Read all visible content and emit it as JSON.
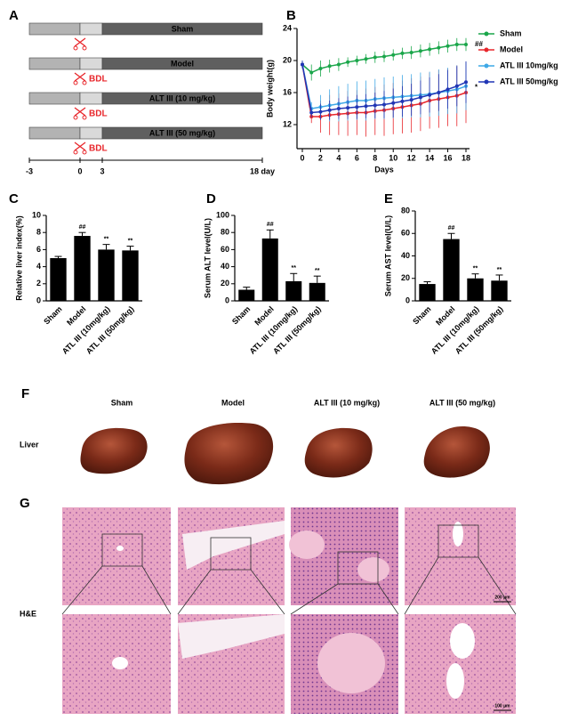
{
  "panels": [
    "A",
    "B",
    "C",
    "D",
    "E",
    "F",
    "G"
  ],
  "timeline": {
    "groups": [
      "Sham",
      "Model",
      "ALT III (10 mg/kg)",
      "ALT III (50 mg/kg)"
    ],
    "procedure": "BDL",
    "ticks": [
      "-3",
      "0",
      "3",
      "18 day"
    ]
  },
  "chart_data": [
    {
      "type": "line",
      "xlabel": "Days",
      "ylabel": "Body weight(g)",
      "x": [
        0,
        1,
        2,
        3,
        4,
        5,
        6,
        7,
        8,
        9,
        10,
        11,
        12,
        13,
        14,
        15,
        16,
        17,
        18
      ],
      "xlim": [
        0,
        18
      ],
      "xticks": [
        0,
        2,
        4,
        6,
        8,
        10,
        12,
        14,
        16,
        18
      ],
      "ylim": [
        9,
        24
      ],
      "yticks": [
        12,
        16,
        20,
        24
      ],
      "legend": "right",
      "series": [
        {
          "name": "Sham",
          "color": "#1aa64a",
          "annotation": "##",
          "values": [
            19.5,
            18.5,
            19,
            19.3,
            19.5,
            19.8,
            20,
            20.2,
            20.4,
            20.5,
            20.7,
            20.9,
            21,
            21.2,
            21.4,
            21.6,
            21.8,
            22,
            22
          ],
          "errors": [
            0.5,
            1,
            1,
            0.8,
            0.8,
            0.6,
            0.6,
            0.6,
            0.7,
            0.7,
            0.7,
            0.7,
            0.8,
            0.8,
            0.8,
            0.8,
            0.8,
            0.8,
            0.8
          ]
        },
        {
          "name": "Model",
          "color": "#e8262b",
          "values": [
            19.5,
            13,
            13,
            13.2,
            13.3,
            13.4,
            13.5,
            13.5,
            13.7,
            13.8,
            14,
            14.2,
            14.4,
            14.6,
            15,
            15.2,
            15.4,
            15.6,
            16
          ],
          "errors": [
            0.5,
            0.8,
            2,
            2.5,
            2.6,
            2.8,
            2.8,
            3,
            3,
            3.2,
            3.2,
            3.3,
            3.4,
            3.4,
            3.5,
            3.6,
            3.6,
            3.8,
            3.8
          ]
        },
        {
          "name": "ATL III 10mg/kg",
          "color": "#3fa8e6",
          "values": [
            19.5,
            14,
            14.2,
            14.4,
            14.6,
            14.8,
            15,
            15,
            15.2,
            15.3,
            15.4,
            15.5,
            15.6,
            15.7,
            15.8,
            16,
            16.2,
            16.4,
            16.8
          ],
          "errors": [
            0.5,
            0.8,
            1.5,
            2,
            2.2,
            2.3,
            2.4,
            2.5,
            2.5,
            2.6,
            2.6,
            2.7,
            2.7,
            2.8,
            2.8,
            2.9,
            2.9,
            3,
            3
          ]
        },
        {
          "name": "ATL III 50mg/kg",
          "color": "#2136b5",
          "annotation": "*",
          "values": [
            19.5,
            13.5,
            13.6,
            13.8,
            14,
            14.1,
            14.2,
            14.3,
            14.4,
            14.5,
            14.7,
            14.9,
            15.1,
            15.4,
            15.7,
            16,
            16.4,
            16.8,
            17.3
          ],
          "errors": [
            0.5,
            0.6,
            1,
            1.2,
            1.3,
            1.4,
            1.5,
            1.5,
            1.6,
            1.7,
            1.8,
            1.9,
            2,
            2.1,
            2.2,
            2.3,
            2.4,
            2.5,
            2.6
          ]
        }
      ]
    },
    {
      "type": "bar",
      "ylabel": "Relative liver index(%)",
      "color": "#000000",
      "categories": [
        "Sham",
        "Model",
        "ATL III (10mg/kg)",
        "ATL III (50mg/kg)"
      ],
      "values": [
        5,
        7.6,
        6,
        5.9
      ],
      "errors": [
        0.2,
        0.4,
        0.6,
        0.5
      ],
      "annotations": [
        null,
        "##",
        "**",
        "**"
      ],
      "ylim": [
        0,
        10
      ],
      "yticks": [
        0,
        2,
        4,
        6,
        8,
        10
      ]
    },
    {
      "type": "bar",
      "ylabel": "Serum ALT level(U/L)",
      "color": "#000000",
      "categories": [
        "Sham",
        "Model",
        "ATL III (10mg/kg)",
        "ATL III (50mg/kg)"
      ],
      "values": [
        13,
        73,
        23,
        21
      ],
      "errors": [
        3,
        10,
        9,
        8
      ],
      "annotations": [
        null,
        "##",
        "**",
        "**"
      ],
      "ylim": [
        0,
        100
      ],
      "yticks": [
        0,
        20,
        40,
        60,
        80,
        100
      ]
    },
    {
      "type": "bar",
      "ylabel": "Serum AST level(U/L)",
      "color": "#000000",
      "categories": [
        "Sham",
        "Model",
        "ATL III (10mg/kg)",
        "ATL III (50mg/kg)"
      ],
      "values": [
        15,
        55,
        20,
        18
      ],
      "errors": [
        2,
        5,
        4,
        5
      ],
      "annotations": [
        null,
        "##",
        "**",
        "**"
      ],
      "ylim": [
        0,
        80
      ],
      "yticks": [
        0,
        20,
        40,
        60,
        80
      ]
    }
  ],
  "photos": {
    "columns": [
      "Sham",
      "Model",
      "ALT III (10 mg/kg)",
      "ALT III (50 mg/kg)"
    ],
    "liver_label": "Liver",
    "stain_label": "H&E",
    "scale_bars": [
      "200 μm",
      "100 μm"
    ]
  }
}
